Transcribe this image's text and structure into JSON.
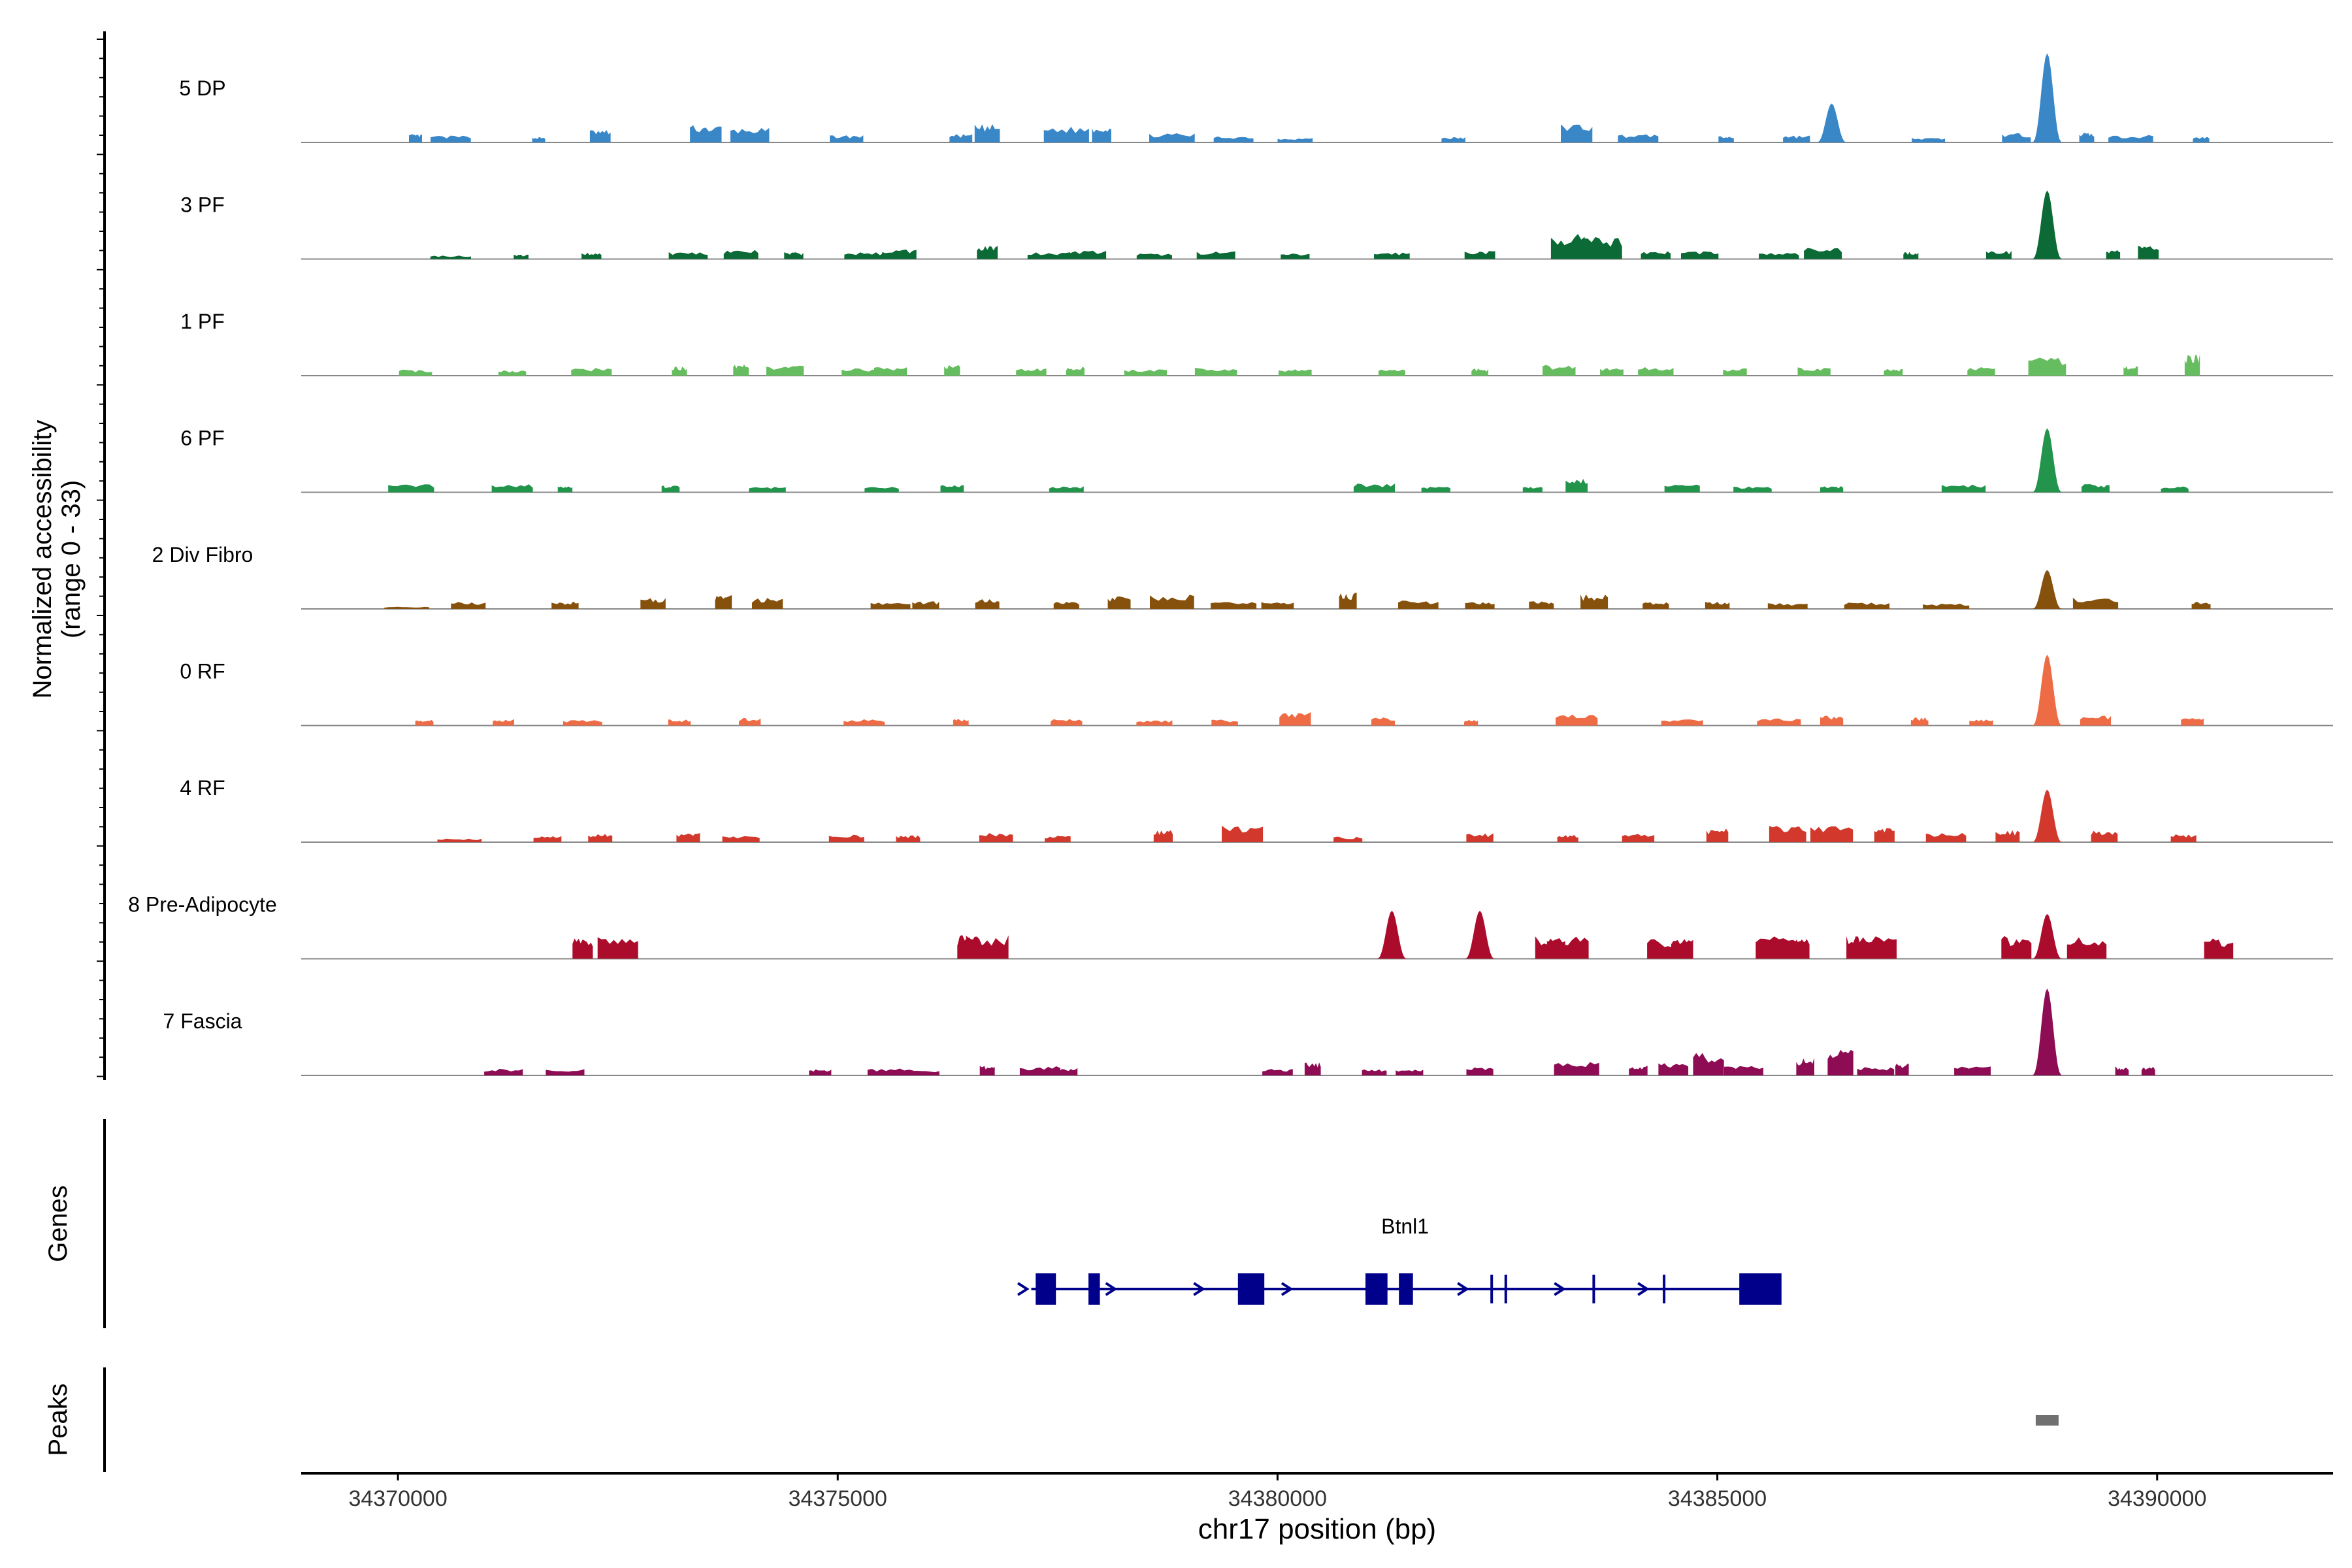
{
  "chart_data": {
    "type": "area",
    "title": "",
    "ylabel_line1": "Normalized accessibility",
    "ylabel_line2": "(range 0 - 33)",
    "y_range": [
      0,
      33
    ],
    "xlabel": "chr17 position (bp)",
    "xlim": [
      34368900,
      34392000
    ],
    "x_ticks": [
      34370000,
      34375000,
      34380000,
      34385000,
      34390000
    ],
    "x_tick_labels": [
      "34370000",
      "34375000",
      "34380000",
      "34385000",
      "34390000"
    ],
    "tracks": [
      {
        "name": "5 DP",
        "color": "#3A87C8",
        "points": [
          [
            34370200,
            1.8
          ],
          [
            34370600,
            1.5
          ],
          [
            34371600,
            1.2
          ],
          [
            34372300,
            2.8
          ],
          [
            34373500,
            3.8
          ],
          [
            34374000,
            3.2
          ],
          [
            34375100,
            1.6
          ],
          [
            34376400,
            1.8
          ],
          [
            34376700,
            4.0
          ],
          [
            34377600,
            3.5
          ],
          [
            34378000,
            3.8
          ],
          [
            34378800,
            2.0
          ],
          [
            34379500,
            1.4
          ],
          [
            34380200,
            1.0
          ],
          [
            34382000,
            1.2
          ],
          [
            34383400,
            4.2
          ],
          [
            34384100,
            1.8
          ],
          [
            34385100,
            1.4
          ],
          [
            34385900,
            1.6
          ],
          [
            34386300,
            8.5
          ],
          [
            34387400,
            1.0
          ],
          [
            34388400,
            2.0
          ],
          [
            34388750,
            19.5
          ],
          [
            34389200,
            2.2
          ],
          [
            34389700,
            1.6
          ],
          [
            34390500,
            1.3
          ]
        ]
      },
      {
        "name": "3 PF",
        "color": "#0B6A35",
        "points": [
          [
            34370600,
            0.8
          ],
          [
            34371400,
            1.0
          ],
          [
            34372200,
            1.5
          ],
          [
            34373300,
            1.6
          ],
          [
            34373900,
            2.0
          ],
          [
            34374500,
            1.5
          ],
          [
            34375300,
            1.5
          ],
          [
            34375700,
            2.2
          ],
          [
            34376700,
            3.2
          ],
          [
            34377400,
            1.6
          ],
          [
            34377800,
            1.9
          ],
          [
            34378600,
            1.2
          ],
          [
            34379300,
            1.7
          ],
          [
            34380200,
            1.2
          ],
          [
            34381300,
            1.5
          ],
          [
            34382300,
            1.8
          ],
          [
            34383300,
            5.5
          ],
          [
            34383700,
            4.8
          ],
          [
            34384300,
            1.8
          ],
          [
            34384800,
            1.8
          ],
          [
            34385700,
            1.4
          ],
          [
            34386200,
            2.5
          ],
          [
            34387200,
            1.6
          ],
          [
            34388200,
            1.8
          ],
          [
            34388750,
            15.0
          ],
          [
            34389500,
            2.2
          ],
          [
            34389900,
            3.0
          ]
        ]
      },
      {
        "name": "1 PF",
        "color": "#66BD5F",
        "points": [
          [
            34370200,
            1.3
          ],
          [
            34371300,
            1.2
          ],
          [
            34372200,
            1.7
          ],
          [
            34373200,
            2.0
          ],
          [
            34373900,
            2.8
          ],
          [
            34374400,
            2.2
          ],
          [
            34375300,
            1.6
          ],
          [
            34375600,
            1.9
          ],
          [
            34376300,
            2.4
          ],
          [
            34377200,
            1.6
          ],
          [
            34377700,
            2.0
          ],
          [
            34378500,
            1.4
          ],
          [
            34379300,
            1.7
          ],
          [
            34380200,
            1.4
          ],
          [
            34381300,
            1.5
          ],
          [
            34382300,
            1.6
          ],
          [
            34383200,
            2.4
          ],
          [
            34383800,
            1.8
          ],
          [
            34384300,
            1.9
          ],
          [
            34385200,
            1.6
          ],
          [
            34386100,
            1.8
          ],
          [
            34387000,
            1.5
          ],
          [
            34388000,
            2.0
          ],
          [
            34388750,
            4.0
          ],
          [
            34389700,
            2.2
          ],
          [
            34390400,
            4.8
          ]
        ]
      },
      {
        "name": "6 PF",
        "color": "#23944C",
        "points": [
          [
            34370150,
            1.8
          ],
          [
            34371300,
            1.8
          ],
          [
            34371900,
            1.3
          ],
          [
            34373100,
            1.6
          ],
          [
            34374200,
            1.2
          ],
          [
            34375500,
            1.2
          ],
          [
            34376300,
            1.6
          ],
          [
            34377600,
            1.4
          ],
          [
            34381100,
            2.0
          ],
          [
            34381800,
            1.3
          ],
          [
            34382900,
            1.2
          ],
          [
            34383400,
            3.2
          ],
          [
            34384600,
            1.8
          ],
          [
            34385400,
            1.4
          ],
          [
            34386300,
            1.5
          ],
          [
            34387800,
            1.8
          ],
          [
            34388750,
            14.0
          ],
          [
            34389300,
            1.8
          ],
          [
            34390200,
            1.3
          ]
        ]
      },
      {
        "name": "2 Div Fibro",
        "color": "#86510D",
        "points": [
          [
            34370100,
            0.5
          ],
          [
            34370800,
            1.5
          ],
          [
            34371900,
            1.6
          ],
          [
            34372900,
            2.4
          ],
          [
            34373700,
            3.0
          ],
          [
            34374200,
            2.4
          ],
          [
            34375600,
            1.4
          ],
          [
            34376000,
            1.7
          ],
          [
            34376700,
            2.2
          ],
          [
            34377600,
            1.6
          ],
          [
            34378200,
            2.8
          ],
          [
            34378800,
            3.2
          ],
          [
            34379500,
            1.5
          ],
          [
            34380000,
            1.8
          ],
          [
            34380800,
            3.6
          ],
          [
            34381600,
            1.8
          ],
          [
            34382300,
            1.5
          ],
          [
            34383000,
            1.7
          ],
          [
            34383600,
            3.2
          ],
          [
            34384300,
            1.5
          ],
          [
            34385000,
            1.6
          ],
          [
            34385800,
            1.3
          ],
          [
            34386700,
            1.5
          ],
          [
            34387600,
            1.2
          ],
          [
            34388750,
            8.5
          ],
          [
            34389300,
            2.5
          ],
          [
            34390500,
            1.6
          ]
        ]
      },
      {
        "name": "0 RF",
        "color": "#EE6C45",
        "points": [
          [
            34370300,
            1.3
          ],
          [
            34371200,
            1.4
          ],
          [
            34372100,
            1.2
          ],
          [
            34373200,
            1.4
          ],
          [
            34374000,
            1.7
          ],
          [
            34375300,
            1.4
          ],
          [
            34376400,
            1.6
          ],
          [
            34377600,
            1.5
          ],
          [
            34378600,
            1.2
          ],
          [
            34379400,
            1.3
          ],
          [
            34380200,
            3.0
          ],
          [
            34381200,
            1.8
          ],
          [
            34382200,
            1.2
          ],
          [
            34383400,
            2.6
          ],
          [
            34384600,
            1.4
          ],
          [
            34385700,
            1.6
          ],
          [
            34386300,
            2.2
          ],
          [
            34387300,
            1.8
          ],
          [
            34388000,
            1.5
          ],
          [
            34388750,
            15.5
          ],
          [
            34389300,
            2.2
          ],
          [
            34390400,
            1.7
          ]
        ]
      },
      {
        "name": "4 RF",
        "color": "#D2382B",
        "points": [
          [
            34370700,
            0.8
          ],
          [
            34371700,
            1.5
          ],
          [
            34372300,
            1.8
          ],
          [
            34373300,
            2.0
          ],
          [
            34373900,
            1.4
          ],
          [
            34375100,
            1.7
          ],
          [
            34375800,
            1.5
          ],
          [
            34376800,
            2.0
          ],
          [
            34377500,
            1.5
          ],
          [
            34378700,
            2.8
          ],
          [
            34379600,
            3.6
          ],
          [
            34380800,
            1.2
          ],
          [
            34382300,
            2.0
          ],
          [
            34383300,
            1.6
          ],
          [
            34384100,
            1.8
          ],
          [
            34385000,
            3.0
          ],
          [
            34385800,
            3.8
          ],
          [
            34386300,
            3.5
          ],
          [
            34386900,
            3.2
          ],
          [
            34387600,
            2.0
          ],
          [
            34388300,
            2.6
          ],
          [
            34388750,
            11.5
          ],
          [
            34389400,
            2.6
          ],
          [
            34390300,
            1.8
          ]
        ]
      },
      {
        "name": "8 Pre-Adipocyte",
        "color": "#AB0C2C",
        "points": [
          [
            34372100,
            4.8
          ],
          [
            34372500,
            4.8
          ],
          [
            34376500,
            5.2
          ],
          [
            34376700,
            5.2
          ],
          [
            34381300,
            10.5
          ],
          [
            34382300,
            10.5
          ],
          [
            34383100,
            5.0
          ],
          [
            34383300,
            5.0
          ],
          [
            34384400,
            4.6
          ],
          [
            34384600,
            4.6
          ],
          [
            34385700,
            5.0
          ],
          [
            34385900,
            5.0
          ],
          [
            34386600,
            5.0
          ],
          [
            34386800,
            5.0
          ],
          [
            34388400,
            5.0
          ],
          [
            34388750,
            9.8
          ],
          [
            34389200,
            5.0
          ],
          [
            34390700,
            4.6
          ]
        ]
      },
      {
        "name": "7 Fascia",
        "color": "#8D0C54",
        "points": [
          [
            34371200,
            1.5
          ],
          [
            34371900,
            1.4
          ],
          [
            34374800,
            1.4
          ],
          [
            34375600,
            1.5
          ],
          [
            34375900,
            1.2
          ],
          [
            34376700,
            2.2
          ],
          [
            34377300,
            2.0
          ],
          [
            34377600,
            1.6
          ],
          [
            34380000,
            1.4
          ],
          [
            34380400,
            3.0
          ],
          [
            34381100,
            1.4
          ],
          [
            34381500,
            1.3
          ],
          [
            34382300,
            1.8
          ],
          [
            34383400,
            3.0
          ],
          [
            34384100,
            2.2
          ],
          [
            34384500,
            2.8
          ],
          [
            34384900,
            5.0
          ],
          [
            34385300,
            2.3
          ],
          [
            34386000,
            4.0
          ],
          [
            34386400,
            6.0
          ],
          [
            34386800,
            1.8
          ],
          [
            34387100,
            2.6
          ],
          [
            34387900,
            2.0
          ],
          [
            34388750,
            19.0
          ],
          [
            34389600,
            2.0
          ],
          [
            34389900,
            1.8
          ]
        ]
      }
    ],
    "genes": {
      "label": "Genes",
      "name": "Btnl1",
      "start": 34377200,
      "end": 34385700,
      "strand": "+",
      "exons": [
        [
          34377250,
          34377480
        ],
        [
          34377850,
          34377980
        ],
        [
          34379550,
          34379850
        ],
        [
          34381000,
          34381250
        ],
        [
          34381380,
          34381540
        ],
        [
          34382420,
          34382450
        ],
        [
          34382580,
          34382610
        ],
        [
          34383580,
          34383610
        ],
        [
          34384380,
          34384410
        ],
        [
          34385250,
          34385730
        ]
      ],
      "arrows": [
        34377100,
        34378100,
        34379100,
        34380100,
        34382100,
        34383200,
        34384150
      ]
    },
    "peaks": {
      "label": "Peaks",
      "regions": [
        [
          34388620,
          34388880
        ]
      ]
    }
  }
}
